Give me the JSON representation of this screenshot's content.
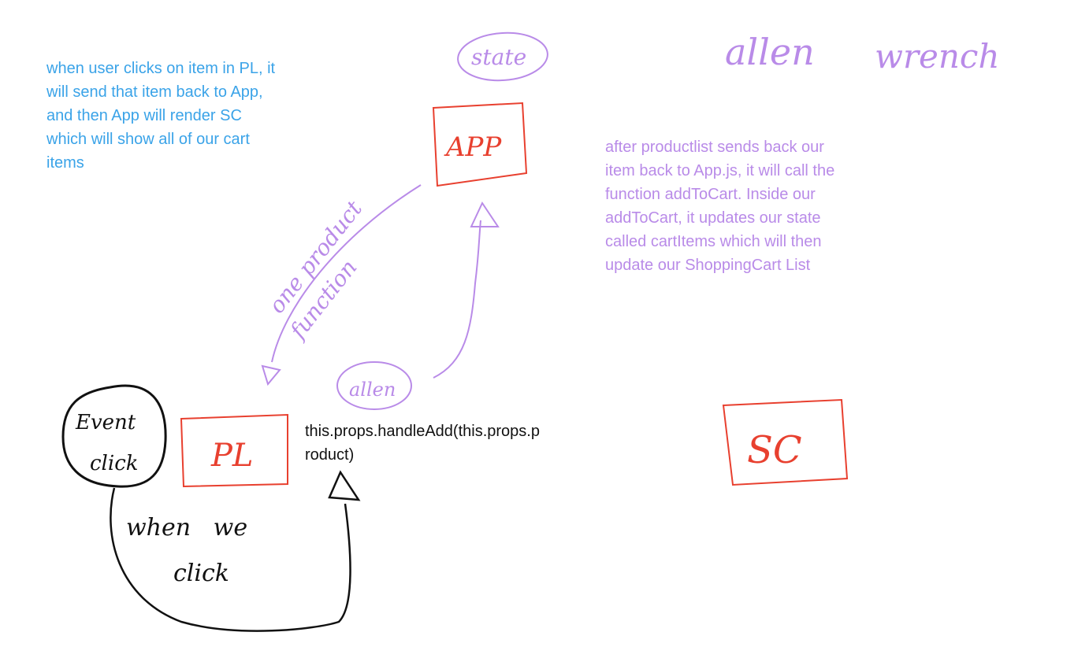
{
  "notes": {
    "blue_note": "when user clicks on item in PL, it\nwill send that item back to App,\nand then App will render SC\nwhich will show all of our cart\nitems",
    "purple_note": "after productlist sends back our\nitem back to App.js, it will call the\nfunction addToCart. Inside our\naddToCart, it updates our state\ncalled cartItems which will then\nupdate our ShoppingCart List",
    "handle_add": "this.props.handleAdd(this.props.p\nroduct)"
  },
  "nodes": {
    "app": "APP",
    "pl": "PL",
    "sc": "SC",
    "state": "state",
    "event_click": [
      "Event",
      "click"
    ],
    "allen_circle": "allen"
  },
  "handwriting": {
    "allen": "allen",
    "wrench": "wrench",
    "one_product": "one product",
    "function": "function",
    "when_we_click": [
      "when   we",
      "click"
    ]
  },
  "colors": {
    "red": "#e8402f",
    "purple": "#b98be8",
    "blue": "#3aa3e8",
    "black": "#111111"
  }
}
